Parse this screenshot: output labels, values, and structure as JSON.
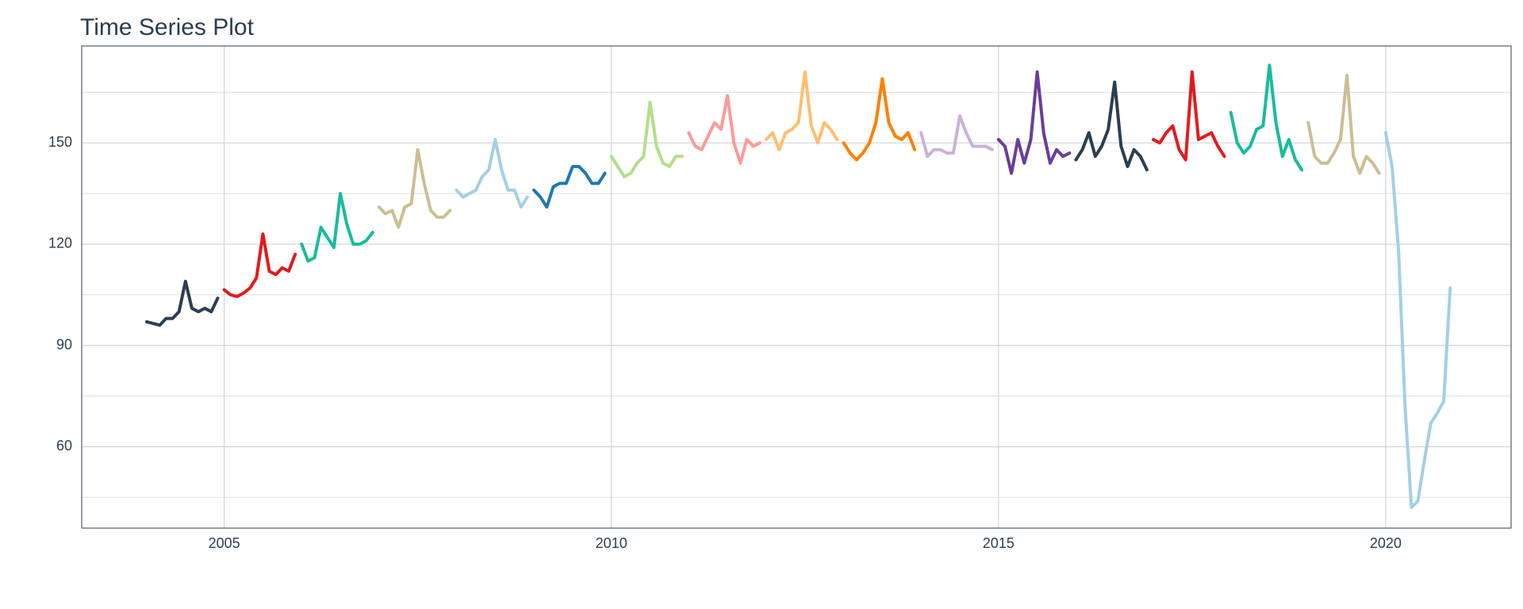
{
  "chart_data": {
    "type": "line",
    "title": "Time Series Plot",
    "xlim": [
      2003.16,
      2021.62
    ],
    "ylim": [
      35.9,
      178.7
    ],
    "xticks": [
      2005,
      2010,
      2015,
      2020
    ],
    "yticks": [
      60,
      90,
      120,
      150
    ],
    "yminor": [
      45,
      75,
      105,
      135,
      165
    ],
    "grid": true,
    "series": [
      {
        "color": "#2c3e50",
        "x": [
          2004,
          2004.083,
          2004.167,
          2004.25,
          2004.333,
          2004.417,
          2004.5,
          2004.583,
          2004.667,
          2004.75,
          2004.833,
          2004.917
        ],
        "values": [
          97,
          96.5,
          96,
          98,
          98,
          100,
          109,
          101,
          100,
          101,
          100,
          104
        ]
      },
      {
        "color": "#e31a1c",
        "x": [
          2005,
          2005.083,
          2005.167,
          2005.25,
          2005.333,
          2005.417,
          2005.5,
          2005.583,
          2005.667,
          2005.75,
          2005.833,
          2005.917
        ],
        "values": [
          106.5,
          105,
          104.5,
          105.5,
          107,
          110,
          123,
          112,
          111,
          113,
          112,
          117
        ]
      },
      {
        "color": "#18bc9c",
        "x": [
          2006,
          2006.083,
          2006.167,
          2006.25,
          2006.333,
          2006.417,
          2006.5,
          2006.583,
          2006.667,
          2006.75,
          2006.833,
          2006.917
        ],
        "values": [
          120,
          115,
          116,
          125,
          122,
          119,
          135,
          126,
          120,
          120,
          121,
          123.5
        ]
      },
      {
        "color": "#ccbe93",
        "x": [
          2007,
          2007.083,
          2007.167,
          2007.25,
          2007.333,
          2007.417,
          2007.5,
          2007.583,
          2007.667,
          2007.75,
          2007.833,
          2007.917
        ],
        "values": [
          131,
          129,
          130,
          125,
          131,
          132,
          148,
          138,
          130,
          128,
          128,
          130
        ]
      },
      {
        "color": "#a6cee3",
        "x": [
          2008,
          2008.083,
          2008.167,
          2008.25,
          2008.333,
          2008.417,
          2008.5,
          2008.583,
          2008.667,
          2008.75,
          2008.833,
          2008.917
        ],
        "values": [
          136,
          134,
          135,
          136,
          140,
          142,
          151,
          142,
          136,
          136,
          131,
          134
        ]
      },
      {
        "color": "#1f78b4",
        "x": [
          2009,
          2009.083,
          2009.167,
          2009.25,
          2009.333,
          2009.417,
          2009.5,
          2009.583,
          2009.667,
          2009.75,
          2009.833,
          2009.917
        ],
        "values": [
          136,
          134,
          131,
          137,
          138,
          138,
          143,
          143,
          141,
          138,
          138,
          141
        ]
      },
      {
        "color": "#b2df8a",
        "x": [
          2010,
          2010.083,
          2010.167,
          2010.25,
          2010.333,
          2010.417,
          2010.5,
          2010.583,
          2010.667,
          2010.75,
          2010.833,
          2010.917
        ],
        "values": [
          146,
          143,
          140,
          141,
          144,
          146,
          162,
          149,
          144,
          143,
          146,
          146
        ]
      },
      {
        "color": "#fb9a99",
        "x": [
          2011,
          2011.083,
          2011.167,
          2011.25,
          2011.333,
          2011.417,
          2011.5,
          2011.583,
          2011.667,
          2011.75,
          2011.833,
          2011.917
        ],
        "values": [
          153,
          149,
          148,
          152,
          156,
          154,
          164,
          150,
          144,
          151,
          149,
          150
        ]
      },
      {
        "color": "#fdbf6f",
        "x": [
          2012,
          2012.083,
          2012.167,
          2012.25,
          2012.333,
          2012.417,
          2012.5,
          2012.583,
          2012.667,
          2012.75,
          2012.833,
          2012.917
        ],
        "values": [
          151,
          153,
          148,
          153,
          154,
          156,
          171,
          155,
          150,
          156,
          154,
          151
        ]
      },
      {
        "color": "#ff7f00",
        "x": [
          2013,
          2013.083,
          2013.167,
          2013.25,
          2013.333,
          2013.417,
          2013.5,
          2013.583,
          2013.667,
          2013.75,
          2013.833,
          2013.917
        ],
        "values": [
          150,
          147,
          145,
          147,
          150,
          156,
          169,
          156,
          152,
          151,
          153,
          148
        ]
      },
      {
        "color": "#cab2d6",
        "x": [
          2014,
          2014.083,
          2014.167,
          2014.25,
          2014.333,
          2014.417,
          2014.5,
          2014.583,
          2014.667,
          2014.75,
          2014.833,
          2014.917
        ],
        "values": [
          153,
          146,
          148,
          148,
          147,
          147,
          158,
          153,
          149,
          149,
          149,
          148
        ]
      },
      {
        "color": "#6a3d9a",
        "x": [
          2015,
          2015.083,
          2015.167,
          2015.25,
          2015.333,
          2015.417,
          2015.5,
          2015.583,
          2015.667,
          2015.75,
          2015.833,
          2015.917
        ],
        "values": [
          151,
          149,
          141,
          151,
          144,
          151,
          171,
          153,
          144,
          148,
          146,
          147
        ]
      },
      {
        "color": "#2c3e50",
        "x": [
          2016,
          2016.083,
          2016.167,
          2016.25,
          2016.333,
          2016.417,
          2016.5,
          2016.583,
          2016.667,
          2016.75,
          2016.833,
          2016.917
        ],
        "values": [
          145,
          148,
          153,
          146,
          149,
          154,
          168,
          149,
          143,
          148,
          146,
          142
        ]
      },
      {
        "color": "#e31a1c",
        "x": [
          2017,
          2017.083,
          2017.167,
          2017.25,
          2017.333,
          2017.417,
          2017.5,
          2017.583,
          2017.667,
          2017.75,
          2017.833,
          2017.917
        ],
        "values": [
          151,
          150,
          153,
          155,
          148,
          145,
          171,
          151,
          152,
          153,
          149,
          146
        ]
      },
      {
        "color": "#18bc9c",
        "x": [
          2018,
          2018.083,
          2018.167,
          2018.25,
          2018.333,
          2018.417,
          2018.5,
          2018.583,
          2018.667,
          2018.75,
          2018.833,
          2018.917
        ],
        "values": [
          159,
          150,
          147,
          149,
          154,
          155,
          173,
          156,
          146,
          151,
          145,
          142
        ]
      },
      {
        "color": "#ccbe93",
        "x": [
          2019,
          2019.083,
          2019.167,
          2019.25,
          2019.333,
          2019.417,
          2019.5,
          2019.583,
          2019.667,
          2019.75,
          2019.833,
          2019.917
        ],
        "values": [
          156,
          146,
          144,
          144,
          147,
          151,
          170,
          146,
          141,
          146,
          144,
          141
        ]
      },
      {
        "color": "#a6cee3",
        "x": [
          2020,
          2020.083,
          2020.167,
          2020.25,
          2020.333,
          2020.417,
          2020.5,
          2020.583,
          2020.667,
          2020.75,
          2020.833
        ],
        "values": [
          153,
          143,
          118,
          72,
          42,
          44,
          56,
          67,
          70,
          73.5,
          107
        ]
      }
    ]
  }
}
